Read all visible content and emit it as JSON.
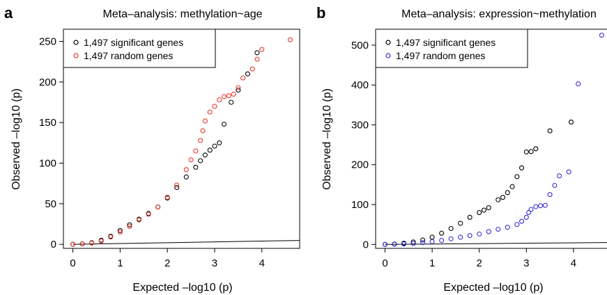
{
  "chart_data": [
    {
      "type": "scatter",
      "panel_label": "a",
      "title": "Meta–analysis: methylation~age",
      "xlabel": "Expected –log10 (p)",
      "ylabel": "Observed –log10 (p)",
      "xlim": [
        -0.2,
        4.8
      ],
      "ylim": [
        -5,
        265
      ],
      "xticks": [
        0,
        1,
        2,
        3,
        4
      ],
      "yticks": [
        0,
        50,
        100,
        150,
        200,
        250
      ],
      "legend_position": "top-left",
      "series": [
        {
          "name": "1,497 significant genes",
          "color": "#000000",
          "points": [
            [
              0,
              0
            ],
            [
              0.2,
              0.6
            ],
            [
              0.4,
              2
            ],
            [
              0.6,
              5
            ],
            [
              0.8,
              10
            ],
            [
              1.0,
              17
            ],
            [
              1.2,
              24
            ],
            [
              1.4,
              31
            ],
            [
              1.6,
              38
            ],
            [
              1.8,
              46
            ],
            [
              2.0,
              57
            ],
            [
              2.2,
              70
            ],
            [
              2.4,
              83
            ],
            [
              2.6,
              95
            ],
            [
              2.7,
              103
            ],
            [
              2.8,
              110
            ],
            [
              2.9,
              116
            ],
            [
              3.0,
              121
            ],
            [
              3.1,
              125
            ],
            [
              3.2,
              148
            ],
            [
              3.35,
              175
            ],
            [
              3.5,
              190
            ],
            [
              3.7,
              210
            ],
            [
              3.9,
              236
            ]
          ]
        },
        {
          "name": "1,497 random genes",
          "color": "#e8372b",
          "points": [
            [
              0,
              0
            ],
            [
              0.2,
              0.5
            ],
            [
              0.4,
              1.5
            ],
            [
              0.6,
              4
            ],
            [
              0.8,
              9
            ],
            [
              1.0,
              15
            ],
            [
              1.2,
              22
            ],
            [
              1.4,
              30
            ],
            [
              1.6,
              37
            ],
            [
              1.8,
              46
            ],
            [
              2.0,
              58
            ],
            [
              2.2,
              73
            ],
            [
              2.4,
              92
            ],
            [
              2.5,
              104
            ],
            [
              2.6,
              115
            ],
            [
              2.7,
              128
            ],
            [
              2.75,
              140
            ],
            [
              2.8,
              152
            ],
            [
              2.9,
              163
            ],
            [
              3.0,
              170
            ],
            [
              3.1,
              178
            ],
            [
              3.2,
              182
            ],
            [
              3.3,
              183
            ],
            [
              3.4,
              185
            ],
            [
              3.5,
              193
            ],
            [
              3.6,
              205
            ],
            [
              3.8,
              216
            ],
            [
              3.9,
              228
            ],
            [
              4.0,
              240
            ],
            [
              4.6,
              252
            ]
          ]
        }
      ],
      "reference_line": {
        "x": [
          0,
          4.8
        ],
        "y": [
          0,
          4.8
        ]
      }
    },
    {
      "type": "scatter",
      "panel_label": "b",
      "title": "Meta–analysis: expression~methylation",
      "xlabel": "Expected –log10 (p)",
      "ylabel": "Observed –log10 (p)",
      "xlim": [
        -0.2,
        4.8
      ],
      "ylim": [
        -10,
        540
      ],
      "xticks": [
        0,
        1,
        2,
        3,
        4
      ],
      "yticks": [
        0,
        100,
        200,
        300,
        400,
        500
      ],
      "legend_position": "top-left",
      "series": [
        {
          "name": "1,497 significant genes",
          "color": "#000000",
          "points": [
            [
              0,
              0
            ],
            [
              0.2,
              1
            ],
            [
              0.4,
              3
            ],
            [
              0.6,
              6
            ],
            [
              0.8,
              11
            ],
            [
              1.0,
              18
            ],
            [
              1.2,
              28
            ],
            [
              1.4,
              40
            ],
            [
              1.6,
              53
            ],
            [
              1.8,
              68
            ],
            [
              2.0,
              80
            ],
            [
              2.1,
              86
            ],
            [
              2.2,
              92
            ],
            [
              2.4,
              112
            ],
            [
              2.5,
              118
            ],
            [
              2.6,
              130
            ],
            [
              2.7,
              145
            ],
            [
              2.8,
              170
            ],
            [
              2.9,
              192
            ],
            [
              3.0,
              232
            ],
            [
              3.1,
              233
            ],
            [
              3.2,
              240
            ],
            [
              3.5,
              285
            ],
            [
              3.95,
              307
            ]
          ]
        },
        {
          "name": "1,497 random genes",
          "color": "#3a2fd6",
          "points": [
            [
              0,
              0
            ],
            [
              0.2,
              0.5
            ],
            [
              0.4,
              1.2
            ],
            [
              0.6,
              2.5
            ],
            [
              0.8,
              4.5
            ],
            [
              1.0,
              7
            ],
            [
              1.2,
              10
            ],
            [
              1.4,
              14
            ],
            [
              1.6,
              18
            ],
            [
              1.8,
              22
            ],
            [
              2.0,
              26
            ],
            [
              2.2,
              32
            ],
            [
              2.4,
              38
            ],
            [
              2.6,
              43
            ],
            [
              2.8,
              50
            ],
            [
              2.9,
              58
            ],
            [
              3.0,
              68
            ],
            [
              3.05,
              80
            ],
            [
              3.1,
              88
            ],
            [
              3.2,
              95
            ],
            [
              3.3,
              97
            ],
            [
              3.4,
              98
            ],
            [
              3.5,
              125
            ],
            [
              3.6,
              148
            ],
            [
              3.7,
              172
            ],
            [
              3.9,
              182
            ],
            [
              4.1,
              403
            ],
            [
              4.6,
              525
            ]
          ]
        }
      ],
      "reference_line": {
        "x": [
          0,
          4.8
        ],
        "y": [
          0,
          4.8
        ]
      }
    }
  ]
}
